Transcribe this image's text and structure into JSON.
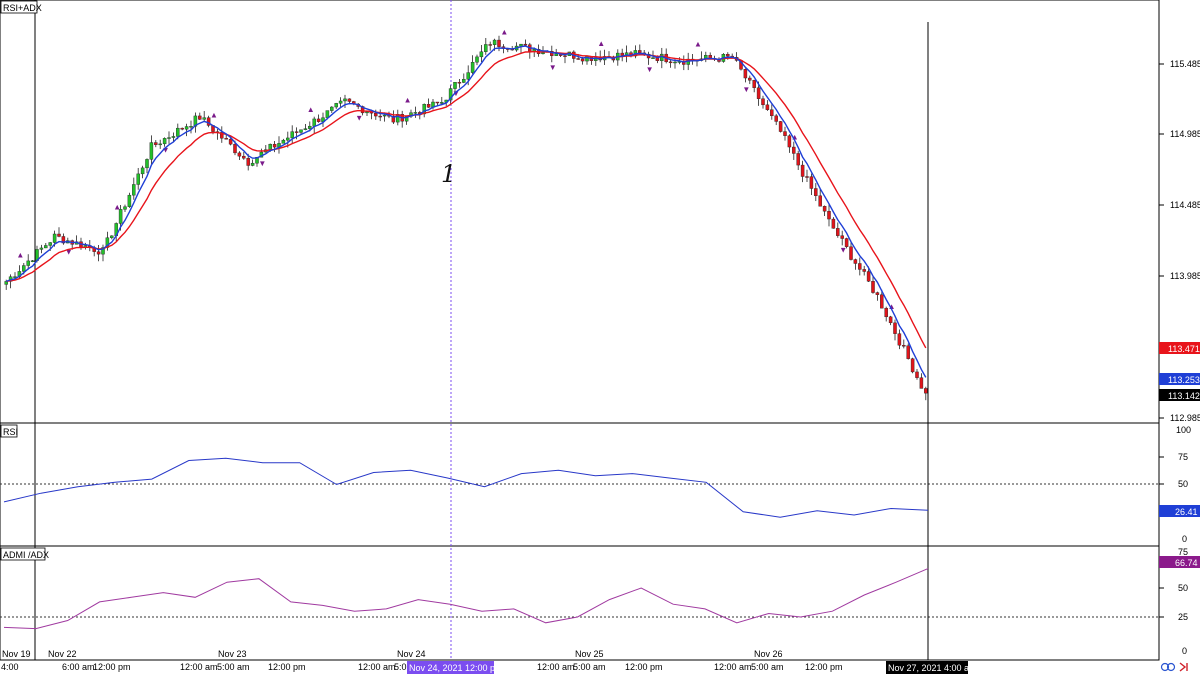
{
  "panes": {
    "price_title": "RSI+ADX",
    "rsi_title": "RSI",
    "adx_title": "ADMI /ADX"
  },
  "price_axis": {
    "ticks": [
      "115.485",
      "114.985",
      "114.485",
      "113.985",
      "112.985"
    ],
    "tags": [
      {
        "label": "113.471",
        "color": "#e8141b"
      },
      {
        "label": "113.253",
        "color": "#1f3fd6"
      },
      {
        "label": "113.142",
        "color": "#000000"
      }
    ]
  },
  "rsi_axis": {
    "ticks": [
      "100",
      "75",
      "50",
      "25",
      "0"
    ],
    "tag": {
      "label": "26.41",
      "color": "#1f3fd6"
    }
  },
  "adx_axis": {
    "ticks": [
      "75",
      "50",
      "25",
      "0"
    ],
    "tag": {
      "label": "66.74",
      "color": "#8b1a8b"
    }
  },
  "time_axis": {
    "labels": [
      "Nov 19",
      "4:00",
      "Nov 22",
      "6:00 am",
      "12:00 pm",
      "12:00 am",
      "5:00 am",
      "Nov 23",
      "12:00 pm",
      "12:00 am",
      "5:0",
      "Nov 24",
      "12:00 am",
      "5:00 am",
      "Nov 25",
      "12:00 pm",
      "12:00 am",
      "5:00 am",
      "Nov 26",
      "12:00 pm"
    ],
    "crosshair_label": "Nov 24, 2021 12:00 pm",
    "last_label": "Nov 27, 2021 4:00 am"
  },
  "annotation": {
    "text": "1"
  },
  "colors": {
    "bull": "#22c02a",
    "bear": "#e0141b",
    "ema_fast": "#1f3fd6",
    "ema_slow": "#e8141b",
    "rsi_line": "#2838c8",
    "adx_line": "#a03aa0",
    "fractal": "#7a1a8a",
    "crosshair": "#7b4df0"
  },
  "chart_data": [
    {
      "type": "candlestick",
      "title": "RSI+ADX",
      "ylim": [
        112.985,
        115.75
      ],
      "series": [
        {
          "name": "price",
          "close_approx": [
            113.9,
            114.2,
            114.1,
            114.8,
            115.0,
            114.7,
            114.9,
            115.1,
            114.98,
            115.1,
            115.5,
            115.45,
            115.4,
            115.42,
            115.38,
            115.4,
            114.9,
            114.3,
            113.8,
            113.142
          ]
        }
      ],
      "last_price": 113.142,
      "ema_fast_last": 113.253,
      "ema_slow_last": 113.471
    },
    {
      "type": "line",
      "title": "RSI",
      "ylim": [
        0,
        100
      ],
      "reference_line": 50,
      "series": [
        {
          "name": "RSI",
          "values": [
            34,
            42,
            48,
            52,
            55,
            72,
            74,
            70,
            70,
            50,
            61,
            63,
            56,
            48,
            60,
            63,
            58,
            60,
            56,
            52,
            25,
            20,
            26,
            22,
            28,
            26.41
          ]
        }
      ]
    },
    {
      "type": "line",
      "title": "ADMI /ADX",
      "ylim": [
        0,
        75
      ],
      "reference_line": 25,
      "series": [
        {
          "name": "ADX",
          "values": [
            16,
            15,
            22,
            38,
            42,
            46,
            42,
            55,
            58,
            38,
            35,
            30,
            32,
            40,
            36,
            30,
            32,
            20,
            25,
            40,
            50,
            36,
            32,
            20,
            28,
            25,
            30,
            44,
            55,
            66.74
          ]
        }
      ]
    }
  ]
}
